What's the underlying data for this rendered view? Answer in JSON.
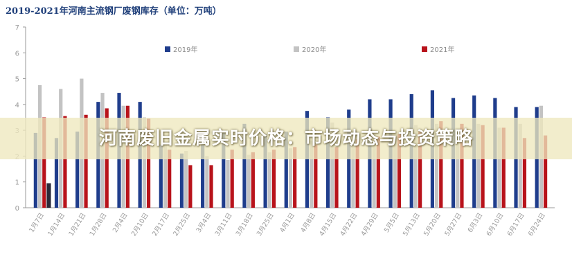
{
  "chart_data": {
    "type": "bar",
    "title": "2019-2021年河南主流钢厂废钢库存（单位：万吨）",
    "ylim": [
      0,
      7
    ],
    "yticks": [
      0,
      1,
      2,
      3,
      4,
      5,
      6,
      7
    ],
    "grid": false,
    "legend_position": "top",
    "categories": [
      "1月7日",
      "1月14日",
      "1月21日",
      "1月28日",
      "2月4日",
      "2月10日",
      "2月17日",
      "2月25日",
      "3月4日",
      "3月11日",
      "3月18日",
      "3月25日",
      "4月1日",
      "4月8日",
      "4月15日",
      "4月22日",
      "4月29日",
      "5月5日",
      "5月13日",
      "5月20日",
      "5月27日",
      "6月3日",
      "6月10日",
      "6月17日",
      "6月24日"
    ],
    "series": [
      {
        "name": "2019年",
        "color": "#1f3d8c",
        "values": [
          2.9,
          2.7,
          2.95,
          4.1,
          4.45,
          4.1,
          2.45,
          2.1,
          2.45,
          2.9,
          3.25,
          2.85,
          2.95,
          3.75,
          3.5,
          3.8,
          4.2,
          4.2,
          4.4,
          4.55,
          4.25,
          4.35,
          4.25,
          3.9,
          3.9
        ]
      },
      {
        "name": "2020年",
        "color": "#c3c3c3",
        "values": [
          4.75,
          4.6,
          5.0,
          4.45,
          3.95,
          3.5,
          2.45,
          2.2,
          2.0,
          1.85,
          2.05,
          2.15,
          2.3,
          2.6,
          3.3,
          2.85,
          2.85,
          2.9,
          3.2,
          3.25,
          3.05,
          3.25,
          3.1,
          3.25,
          3.95
        ]
      },
      {
        "name": "2021年",
        "color": "#b8131b",
        "values": [
          3.5,
          3.55,
          3.6,
          3.85,
          3.95,
          3.45,
          2.25,
          1.65,
          1.65,
          2.25,
          2.15,
          2.25,
          2.35,
          2.45,
          2.35,
          2.65,
          2.75,
          2.85,
          2.95,
          3.35,
          3.25,
          3.2,
          3.1,
          2.7,
          2.8
        ]
      }
    ],
    "highlight_bar": {
      "category_index": 0,
      "value": 0.95,
      "color": "#2a2a3a"
    }
  },
  "overlay": {
    "headline": "河南废旧金属实时价格：市场动态与投资策略"
  }
}
